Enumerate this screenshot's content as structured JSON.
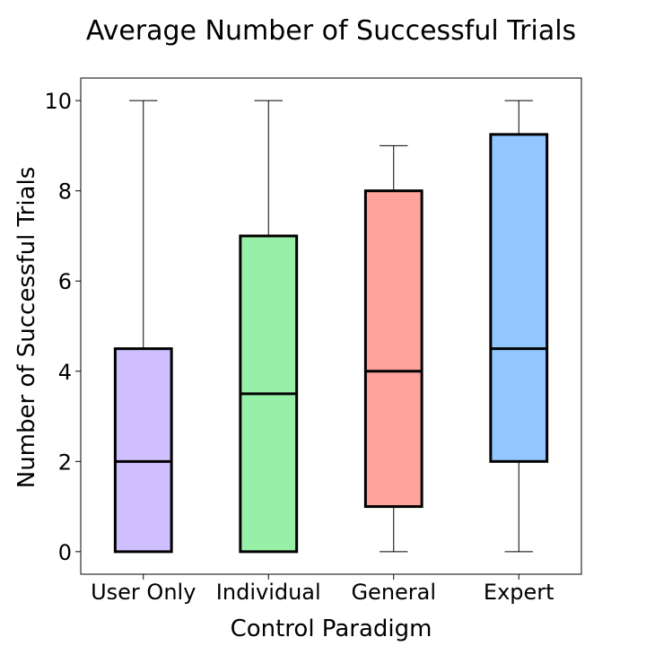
{
  "chart_data": {
    "type": "boxplot",
    "title": "Average Number of Successful Trials",
    "xlabel": "Control Paradigm",
    "ylabel": "Number of Successful Trials",
    "ylim": [
      -0.5,
      10.5
    ],
    "yticks": [
      0,
      2,
      4,
      6,
      8,
      10
    ],
    "categories": [
      "User Only",
      "Individual",
      "General",
      "Expert"
    ],
    "boxes": [
      {
        "name": "User Only",
        "min": 0,
        "q1": 0,
        "median": 2,
        "q3": 4.5,
        "max": 10,
        "color": "#cfbfff"
      },
      {
        "name": "Individual",
        "min": 0,
        "q1": 0,
        "median": 3.5,
        "q3": 7,
        "max": 10,
        "color": "#98f0a8"
      },
      {
        "name": "General",
        "min": 0,
        "q1": 1,
        "median": 4,
        "q3": 8,
        "max": 9,
        "color": "#ffa39c"
      },
      {
        "name": "Expert",
        "min": 0,
        "q1": 2,
        "median": 4.5,
        "q3": 9.25,
        "max": 10,
        "color": "#93c6ff"
      }
    ]
  }
}
